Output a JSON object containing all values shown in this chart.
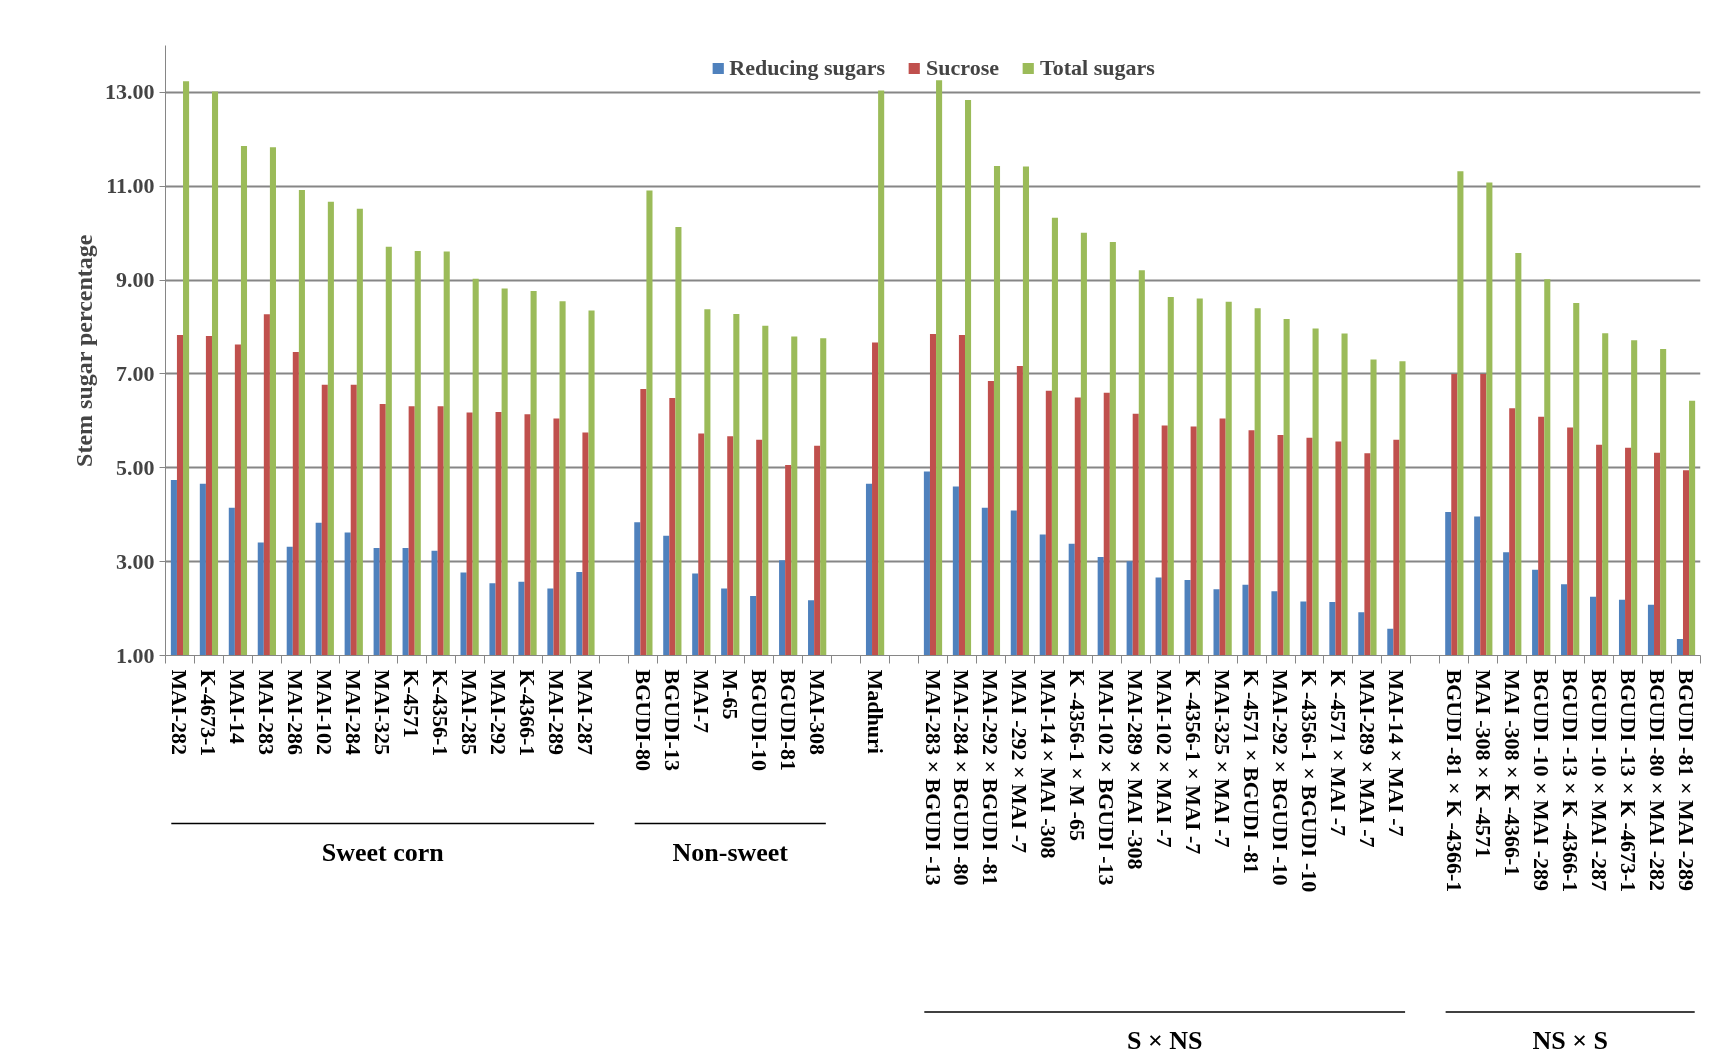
{
  "chart_data": {
    "type": "bar",
    "ylabel": "Stem sugar percentage",
    "categories": [
      "MAI-282",
      "K-4673-1",
      "MAI-14",
      "MAI-283",
      "MAI-286",
      "MAI-102",
      "MAI-284",
      "MAI-325",
      "K-4571",
      "K-4356-1",
      "MAI-285",
      "MAI-292",
      "K-4366-1",
      "MAI-289",
      "MAI-287",
      null,
      "BGUDI-80",
      "BGUDI-13",
      "MAI-7",
      "M-65",
      "BGUDI-10",
      "BGUDI-81",
      "MAI-308",
      null,
      "Madhuri",
      null,
      "MAI-283 × BGUDI -13",
      "MAI-284 × BGUDI -80",
      "MAI-292 × BGUDI -81",
      "MAI -292 × MAI -7",
      "MAI-14 × MAI -308",
      "K -4356-1 × M -65",
      "MAI-102 × BGUDI -13",
      "MAI-289 × MAI -308",
      "MAI-102 × MAI -7",
      "K -4356-1 × MAI -7",
      "MAI-325 × MAI -7",
      "K -4571 × BGUDI -81",
      "MAI-292 × BGUDI -10",
      "K -4356-1 × BGUDI -10",
      "K -4571 × MAI -7",
      "MAI-289 × MAI -7",
      "MAI-14 × MAI -7",
      null,
      "BGUDI -81 × K -4366-1",
      "MAI -308 × K -4571",
      "MAI -308 × K -4366-1",
      "BGUDI -10 × MAI -289",
      "BGUDI -13 × K -4366-1",
      "BGUDI -10 × MAI -287",
      "BGUDI -13 × K -4673-1",
      "BGUDI -80 × MAI -282",
      "BGUDI -81 × MAI -289"
    ],
    "series": [
      {
        "name": "Reducing sugars",
        "color": "#4f81bd",
        "values": [
          4.74,
          4.66,
          4.15,
          3.41,
          3.32,
          3.83,
          3.62,
          3.29,
          3.29,
          3.23,
          2.77,
          2.54,
          2.57,
          2.43,
          2.78,
          null,
          3.84,
          3.55,
          2.75,
          2.43,
          2.27,
          3.03,
          2.18,
          null,
          4.66,
          null,
          4.92,
          4.6,
          4.15,
          4.09,
          3.58,
          3.38,
          3.1,
          3.01,
          2.66,
          2.61,
          2.41,
          2.51,
          2.37,
          2.15,
          2.14,
          1.92,
          1.57,
          null,
          4.06,
          3.96,
          3.2,
          2.83,
          2.52,
          2.25,
          2.19,
          2.08,
          1.35
        ]
      },
      {
        "name": "Sucrose",
        "color": "#c0504d",
        "values": [
          7.83,
          7.81,
          7.63,
          8.27,
          7.47,
          6.77,
          6.77,
          6.36,
          6.31,
          6.31,
          6.18,
          6.19,
          6.14,
          6.05,
          5.75,
          null,
          6.68,
          6.49,
          5.73,
          5.67,
          5.6,
          5.06,
          5.47,
          null,
          7.67,
          null,
          7.85,
          7.83,
          6.85,
          7.17,
          6.64,
          6.5,
          6.6,
          6.15,
          5.9,
          5.88,
          6.05,
          5.8,
          5.7,
          5.64,
          5.56,
          5.31,
          5.6,
          null,
          7.0,
          7.0,
          6.27,
          6.09,
          5.86,
          5.49,
          5.43,
          5.32,
          4.95
        ]
      },
      {
        "name": "Total sugars",
        "color": "#9bbb59",
        "values": [
          13.24,
          13.02,
          11.86,
          11.83,
          10.92,
          10.67,
          10.52,
          9.71,
          9.62,
          9.61,
          9.03,
          8.82,
          8.77,
          8.55,
          8.35,
          null,
          10.91,
          10.13,
          8.38,
          8.28,
          8.03,
          7.8,
          7.76,
          null,
          13.04,
          null,
          13.26,
          12.84,
          11.43,
          11.42,
          10.33,
          10.01,
          9.81,
          9.21,
          8.64,
          8.61,
          8.54,
          8.4,
          8.17,
          7.97,
          7.86,
          7.31,
          7.27,
          null,
          11.32,
          11.08,
          9.58,
          9.02,
          8.51,
          7.87,
          7.72,
          7.53,
          6.43
        ]
      }
    ],
    "ylim": [
      1,
      14
    ],
    "yticks": [
      {
        "value": 1,
        "label": "1.00"
      },
      {
        "value": 3,
        "label": "3.00"
      },
      {
        "value": 5,
        "label": "5.00"
      },
      {
        "value": 7,
        "label": "7.00"
      },
      {
        "value": 9,
        "label": "9.00"
      },
      {
        "value": 11,
        "label": "11.00"
      },
      {
        "value": 13,
        "label": "13.00"
      }
    ],
    "grid": "y",
    "legend": "top",
    "annotations": [
      "Sweet corn",
      "Non-sweet",
      "S × NS",
      "NS × S"
    ]
  }
}
